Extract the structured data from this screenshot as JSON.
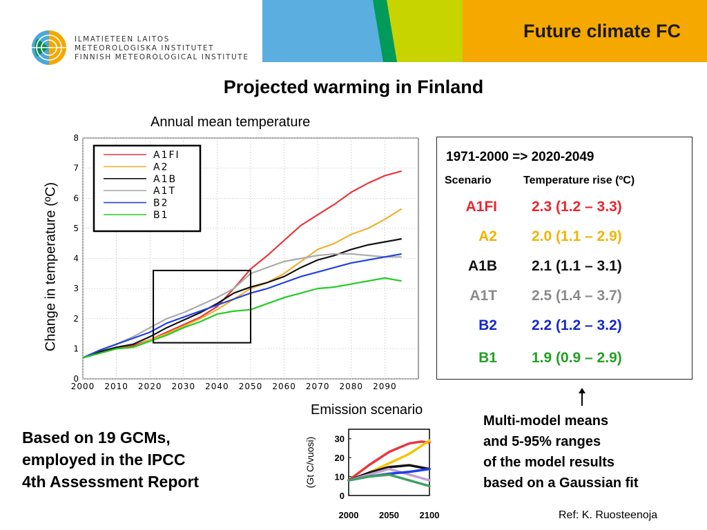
{
  "header": {
    "institute_lines": [
      "ILMATIETEEN LAITOS",
      "METEOROLOGISKA INSTITUTET",
      "FINNISH METEOROLOGICAL INSTITUTE"
    ],
    "section_title": "Future climate FC",
    "banner_colors": [
      "#5aafe0",
      "#009a5a",
      "#c8d400",
      "#f5a800"
    ]
  },
  "main_title": "Projected warming in Finland",
  "chart_data": [
    {
      "type": "line",
      "title": "Annual mean temperature",
      "xlabel": "",
      "ylabel": "Change in temperature  (ºC)",
      "xlim": [
        2000,
        2100
      ],
      "ylim": [
        0,
        8
      ],
      "xticks": [
        2000,
        2010,
        2020,
        2030,
        2040,
        2050,
        2060,
        2070,
        2080,
        2090
      ],
      "yticks": [
        0,
        1,
        2,
        3,
        4,
        5,
        6,
        7,
        8
      ],
      "legend_position": "top-left",
      "highlight_box": {
        "x": [
          2021,
          2050
        ],
        "y": [
          1.2,
          3.6
        ]
      },
      "series": [
        {
          "name": "A1FI",
          "color": "#e8363c",
          "x": [
            2000,
            2005,
            2010,
            2015,
            2020,
            2025,
            2030,
            2035,
            2040,
            2045,
            2050,
            2055,
            2060,
            2065,
            2070,
            2075,
            2080,
            2085,
            2090,
            2095
          ],
          "values": [
            0.7,
            0.9,
            1.0,
            1.1,
            1.3,
            1.55,
            1.8,
            2.05,
            2.4,
            3.0,
            3.65,
            4.1,
            4.6,
            5.1,
            5.45,
            5.8,
            6.2,
            6.5,
            6.75,
            6.9
          ]
        },
        {
          "name": "A2",
          "color": "#f0b030",
          "x": [
            2000,
            2005,
            2010,
            2015,
            2020,
            2025,
            2030,
            2035,
            2040,
            2045,
            2050,
            2055,
            2060,
            2065,
            2070,
            2075,
            2080,
            2085,
            2090,
            2095
          ],
          "values": [
            0.7,
            0.85,
            1.0,
            1.05,
            1.3,
            1.5,
            1.75,
            2.0,
            2.3,
            2.65,
            3.0,
            3.2,
            3.5,
            3.9,
            4.3,
            4.5,
            4.8,
            5.0,
            5.3,
            5.65
          ]
        },
        {
          "name": "A1B",
          "color": "#111111",
          "x": [
            2000,
            2005,
            2010,
            2015,
            2020,
            2025,
            2030,
            2035,
            2040,
            2045,
            2050,
            2055,
            2060,
            2065,
            2070,
            2075,
            2080,
            2085,
            2090,
            2095
          ],
          "values": [
            0.7,
            0.9,
            1.05,
            1.15,
            1.4,
            1.7,
            1.95,
            2.2,
            2.5,
            2.85,
            3.05,
            3.2,
            3.4,
            3.7,
            3.95,
            4.1,
            4.3,
            4.45,
            4.55,
            4.65
          ]
        },
        {
          "name": "A1T",
          "color": "#aaaaaa",
          "x": [
            2000,
            2005,
            2010,
            2015,
            2020,
            2025,
            2030,
            2035,
            2040,
            2045,
            2050,
            2055,
            2060,
            2065,
            2070,
            2075,
            2080,
            2085,
            2090,
            2095
          ],
          "values": [
            0.7,
            0.95,
            1.15,
            1.4,
            1.7,
            2.0,
            2.2,
            2.45,
            2.7,
            3.0,
            3.5,
            3.7,
            3.9,
            4.0,
            4.1,
            4.15,
            4.15,
            4.1,
            4.05,
            4.05
          ]
        },
        {
          "name": "B2",
          "color": "#2040e0",
          "x": [
            2000,
            2005,
            2010,
            2015,
            2020,
            2025,
            2030,
            2035,
            2040,
            2045,
            2050,
            2055,
            2060,
            2065,
            2070,
            2075,
            2080,
            2085,
            2090,
            2095
          ],
          "values": [
            0.7,
            0.95,
            1.15,
            1.35,
            1.55,
            1.85,
            2.05,
            2.25,
            2.45,
            2.65,
            2.85,
            3.0,
            3.2,
            3.4,
            3.55,
            3.7,
            3.85,
            3.95,
            4.05,
            4.15
          ]
        },
        {
          "name": "B1",
          "color": "#22cc22",
          "x": [
            2000,
            2005,
            2010,
            2015,
            2020,
            2025,
            2030,
            2035,
            2040,
            2045,
            2050,
            2055,
            2060,
            2065,
            2070,
            2075,
            2080,
            2085,
            2090,
            2095
          ],
          "values": [
            0.7,
            0.85,
            1.0,
            1.05,
            1.25,
            1.45,
            1.7,
            1.9,
            2.15,
            2.25,
            2.3,
            2.5,
            2.7,
            2.85,
            3.0,
            3.05,
            3.15,
            3.25,
            3.35,
            3.25
          ]
        }
      ]
    },
    {
      "type": "line",
      "title": "Emission scenario",
      "xlabel": "",
      "ylabel": "(Gt C/vuosi)",
      "xlim": [
        2000,
        2100
      ],
      "ylim": [
        0,
        35
      ],
      "xticks": [
        2000,
        2050,
        2100
      ],
      "yticks": [
        0,
        10,
        20,
        30
      ],
      "series": [
        {
          "color": "#e8363c",
          "x": [
            2000,
            2025,
            2050,
            2075,
            2090,
            2100
          ],
          "values": [
            8,
            16,
            23,
            27.5,
            28.5,
            28
          ]
        },
        {
          "color": "#f5c400",
          "x": [
            2000,
            2025,
            2050,
            2075,
            2100
          ],
          "values": [
            8,
            12,
            17,
            22,
            29
          ]
        },
        {
          "color": "#111111",
          "x": [
            2000,
            2025,
            2050,
            2075,
            2100
          ],
          "values": [
            8,
            12,
            15,
            16,
            14
          ]
        },
        {
          "color": "#c0a0d0",
          "x": [
            2000,
            2025,
            2050,
            2075,
            2100
          ],
          "values": [
            8,
            11,
            14,
            11,
            8
          ]
        },
        {
          "color": "#2040e0",
          "x": [
            2000,
            2025,
            2050,
            2075,
            2100
          ],
          "values": [
            8,
            10,
            11.5,
            12.5,
            14
          ]
        },
        {
          "color": "#40a060",
          "x": [
            2000,
            2025,
            2050,
            2075,
            2100
          ],
          "values": [
            8,
            10,
            11,
            8,
            5
          ]
        }
      ]
    }
  ],
  "results": {
    "period": "1971-2000 => 2020-2049",
    "header_scenario": "Scenario",
    "header_rise": "Temperature rise (ºC)",
    "rows": [
      {
        "scenario": "A1FI",
        "value": "2.3 (1.2 – 3.3)",
        "color": "#e8262c"
      },
      {
        "scenario": "A2",
        "value": "2.0 (1.1 – 2.9)",
        "color": "#f0b400"
      },
      {
        "scenario": "A1B",
        "value": "2.1 (1.1 – 3.1)",
        "color": "#111111"
      },
      {
        "scenario": "A1T",
        "value": "2.5 (1.4 – 3.7)",
        "color": "#8a8a8a"
      },
      {
        "scenario": "B2",
        "value": "2.2 (1.2 – 3.2)",
        "color": "#1428c8"
      },
      {
        "scenario": "B1",
        "value": "1.9 (0.9 – 2.9)",
        "color": "#22a022"
      }
    ]
  },
  "gcm_note": [
    "Based on 19 GCMs,",
    "employed in the IPCC",
    "4th Assessment Report"
  ],
  "multimodel_note": [
    "Multi-model means",
    "and 5-95% ranges",
    "of the model results",
    "based on a Gaussian fit"
  ],
  "reference": "Ref: K. Ruosteenoja"
}
